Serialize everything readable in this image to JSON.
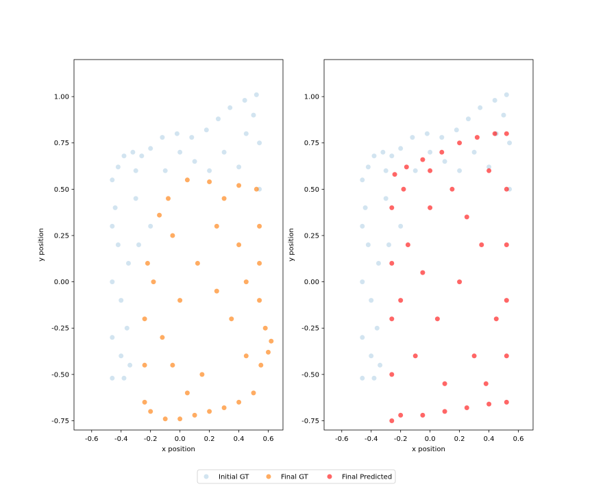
{
  "chart_data": [
    {
      "type": "scatter",
      "xlabel": "x position",
      "ylabel": "y position",
      "xlim": [
        -0.72,
        0.7
      ],
      "ylim": [
        -0.8,
        1.2
      ],
      "xticks": [
        "-0.6",
        "-0.4",
        "-0.2",
        "0.0",
        "0.2",
        "0.4",
        "0.6"
      ],
      "yticks": [
        "-0.75",
        "-0.50",
        "-0.25",
        "0.00",
        "0.25",
        "0.50",
        "0.75",
        "1.00"
      ],
      "series": [
        {
          "name": "Initial GT",
          "color": "#1f77b4",
          "alpha": 0.2,
          "points": [
            [
              -0.46,
              -0.52
            ],
            [
              -0.46,
              -0.3
            ],
            [
              -0.46,
              0.0
            ],
            [
              -0.46,
              0.3
            ],
            [
              -0.46,
              0.55
            ],
            [
              -0.42,
              0.62
            ],
            [
              -0.38,
              0.68
            ],
            [
              -0.32,
              0.7
            ],
            [
              -0.26,
              0.68
            ],
            [
              -0.2,
              0.72
            ],
            [
              -0.12,
              0.78
            ],
            [
              -0.02,
              0.8
            ],
            [
              0.08,
              0.78
            ],
            [
              0.18,
              0.82
            ],
            [
              0.26,
              0.88
            ],
            [
              0.34,
              0.94
            ],
            [
              0.44,
              0.98
            ],
            [
              0.52,
              1.01
            ],
            [
              0.54,
              0.75
            ],
            [
              0.54,
              0.5
            ],
            [
              -0.4,
              -0.4
            ],
            [
              -0.35,
              0.1
            ],
            [
              -0.3,
              0.45
            ],
            [
              -0.1,
              0.6
            ],
            [
              0.1,
              0.65
            ],
            [
              0.3,
              0.7
            ],
            [
              0.45,
              0.8
            ],
            [
              -0.38,
              -0.52
            ],
            [
              -0.2,
              0.3
            ],
            [
              -0.42,
              0.2
            ],
            [
              -0.4,
              -0.1
            ],
            [
              -0.36,
              -0.25
            ],
            [
              -0.3,
              0.6
            ],
            [
              0.0,
              0.7
            ],
            [
              0.2,
              0.6
            ],
            [
              0.4,
              0.62
            ],
            [
              0.5,
              0.9
            ],
            [
              -0.44,
              0.4
            ],
            [
              -0.34,
              -0.45
            ],
            [
              -0.28,
              0.2
            ]
          ]
        },
        {
          "name": "Final GT",
          "color": "#ff7f0e",
          "alpha": 0.65,
          "points": [
            [
              -0.24,
              -0.65
            ],
            [
              -0.2,
              -0.7
            ],
            [
              -0.1,
              -0.74
            ],
            [
              0.0,
              -0.74
            ],
            [
              0.1,
              -0.72
            ],
            [
              0.2,
              -0.7
            ],
            [
              0.3,
              -0.68
            ],
            [
              0.4,
              -0.65
            ],
            [
              0.5,
              -0.6
            ],
            [
              0.55,
              -0.45
            ],
            [
              0.62,
              -0.32
            ],
            [
              0.58,
              -0.25
            ],
            [
              0.54,
              -0.1
            ],
            [
              0.54,
              0.1
            ],
            [
              0.54,
              0.3
            ],
            [
              0.52,
              0.5
            ],
            [
              0.4,
              0.52
            ],
            [
              0.2,
              0.54
            ],
            [
              0.05,
              0.55
            ],
            [
              -0.08,
              0.45
            ],
            [
              -0.14,
              0.36
            ],
            [
              -0.22,
              0.1
            ],
            [
              -0.24,
              -0.2
            ],
            [
              -0.24,
              -0.45
            ],
            [
              -0.12,
              -0.3
            ],
            [
              0.0,
              -0.1
            ],
            [
              0.12,
              0.1
            ],
            [
              0.25,
              0.3
            ],
            [
              0.35,
              -0.2
            ],
            [
              0.45,
              -0.4
            ],
            [
              -0.05,
              0.25
            ],
            [
              0.15,
              -0.5
            ],
            [
              0.3,
              0.45
            ],
            [
              -0.18,
              0.0
            ],
            [
              0.4,
              0.2
            ],
            [
              0.05,
              -0.6
            ],
            [
              0.25,
              -0.05
            ],
            [
              -0.05,
              -0.45
            ],
            [
              0.45,
              0.0
            ],
            [
              0.6,
              -0.38
            ]
          ]
        },
        {
          "name": "Final Predicted",
          "color": "#ff0000",
          "alpha": 0.6,
          "points": [
            [
              -0.26,
              -0.75
            ],
            [
              -0.26,
              -0.5
            ],
            [
              -0.26,
              -0.2
            ],
            [
              -0.26,
              0.1
            ],
            [
              -0.26,
              0.4
            ],
            [
              -0.24,
              0.58
            ],
            [
              -0.16,
              0.62
            ],
            [
              -0.05,
              0.66
            ],
            [
              0.08,
              0.7
            ],
            [
              0.2,
              0.75
            ],
            [
              0.32,
              0.78
            ],
            [
              0.44,
              0.8
            ],
            [
              0.52,
              0.8
            ],
            [
              0.52,
              0.5
            ],
            [
              0.52,
              0.2
            ],
            [
              0.52,
              -0.1
            ],
            [
              0.52,
              -0.4
            ],
            [
              0.52,
              -0.65
            ],
            [
              0.4,
              -0.66
            ],
            [
              0.25,
              -0.68
            ],
            [
              0.1,
              -0.7
            ],
            [
              -0.05,
              -0.72
            ],
            [
              -0.2,
              -0.72
            ],
            [
              -0.1,
              -0.4
            ],
            [
              0.05,
              -0.2
            ],
            [
              0.2,
              0.0
            ],
            [
              0.35,
              0.2
            ],
            [
              0.0,
              0.4
            ],
            [
              -0.15,
              0.2
            ],
            [
              0.3,
              -0.4
            ],
            [
              0.15,
              0.5
            ],
            [
              -0.2,
              -0.1
            ],
            [
              0.4,
              0.6
            ],
            [
              -0.05,
              0.05
            ],
            [
              0.45,
              -0.2
            ],
            [
              0.1,
              -0.55
            ],
            [
              0.25,
              0.35
            ],
            [
              -0.18,
              0.5
            ],
            [
              0.38,
              -0.55
            ],
            [
              0.0,
              0.6
            ]
          ]
        }
      ]
    }
  ],
  "legend": {
    "placement": "bottom-center",
    "items": [
      "Initial GT",
      "Final GT",
      "Final Predicted"
    ]
  },
  "panels": [
    {
      "series": [
        "Initial GT",
        "Final GT"
      ]
    },
    {
      "series": [
        "Initial GT",
        "Final Predicted"
      ]
    }
  ]
}
